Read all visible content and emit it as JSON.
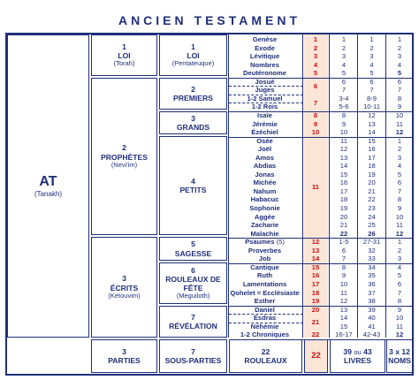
{
  "title": "ANCIEN TESTAMENT",
  "at": {
    "label": "AT",
    "sub": "(Tanakh)"
  },
  "divisions": [
    {
      "num": "1",
      "name": "LOI",
      "sub": "(Torah)"
    },
    {
      "num": "2",
      "name": "PROPHÈTES",
      "sub": "(Nevi'im)"
    },
    {
      "num": "3",
      "name": "ÉCRITS",
      "sub": "(Ketouvim)"
    }
  ],
  "subdivisions": [
    {
      "num": "1",
      "name": "LOI",
      "sub": "(Pentateuque)"
    },
    {
      "num": "2",
      "name": "PREMIERS",
      "sub": ""
    },
    {
      "num": "3",
      "name": "GRANDS",
      "sub": ""
    },
    {
      "num": "4",
      "name": "PETITS",
      "sub": ""
    },
    {
      "num": "5",
      "name": "SAGESSE",
      "sub": ""
    },
    {
      "num": "6",
      "name": "ROULEAUX DE FÊTE",
      "sub": "(Meguiloth)"
    },
    {
      "num": "7",
      "name": "RÉVÉLATION",
      "sub": ""
    }
  ],
  "books": [
    {
      "name": "Genèse",
      "c1": "1",
      "c2": "1",
      "c3": "1"
    },
    {
      "name": "Exode",
      "c1": "2",
      "c2": "2",
      "c3": "2"
    },
    {
      "name": "Lévitique",
      "c1": "3",
      "c2": "3",
      "c3": "3"
    },
    {
      "name": "Nombres",
      "c1": "4",
      "c2": "4",
      "c3": "4"
    },
    {
      "name": "Deutéronome",
      "c1": "5",
      "c2": "5",
      "c3": "5"
    },
    {
      "name": "Josué",
      "c1": "",
      "c2": "6",
      "c3": "6"
    },
    {
      "name": "Juges",
      "c1": "",
      "c2": "7",
      "c3": "7"
    },
    {
      "name": "1-2 Samuel",
      "c1": "",
      "c2": "8-9",
      "c3": "8"
    },
    {
      "name": "1-2 Rois",
      "c1": "",
      "c2": "10-11",
      "c3": "9"
    },
    {
      "name": "Isaïe",
      "c1": "8",
      "c2": "12",
      "c3": "10"
    },
    {
      "name": "Jérémie",
      "c1": "9",
      "c2": "13",
      "c3": "11"
    },
    {
      "name": "Ézéchiel",
      "c1": "10",
      "c2": "14",
      "c3": "12"
    },
    {
      "name": "Osée",
      "c1": "",
      "c2": "15",
      "c3": "13"
    },
    {
      "name": "Joël",
      "c1": "",
      "c2": "16",
      "c3": "14"
    },
    {
      "name": "Amos",
      "c1": "",
      "c2": "17",
      "c3": "15"
    },
    {
      "name": "Abdias",
      "c1": "",
      "c2": "18",
      "c3": "16"
    },
    {
      "name": "Jonas",
      "c1": "",
      "c2": "19",
      "c3": "17"
    },
    {
      "name": "Michée",
      "c1": "",
      "c2": "20",
      "c3": "18"
    },
    {
      "name": "Nahum",
      "c1": "",
      "c2": "21",
      "c3": "19"
    },
    {
      "name": "Habacuc",
      "c1": "",
      "c2": "22",
      "c3": "20"
    },
    {
      "name": "Sophonie",
      "c1": "",
      "c2": "23",
      "c3": "21"
    },
    {
      "name": "Aggée",
      "c1": "",
      "c2": "24",
      "c3": "22"
    },
    {
      "name": "Zacharie",
      "c1": "",
      "c2": "25",
      "c3": "23"
    },
    {
      "name": "Malachie",
      "c1": "",
      "c2": "26",
      "c3": "24"
    },
    {
      "name": "Psaumes",
      "num": "(5)",
      "c1": "12",
      "c2": "27-31",
      "c3": "25"
    },
    {
      "name": "Proverbes",
      "c1": "13",
      "c2": "32",
      "c3": "26"
    },
    {
      "name": "Job",
      "c1": "14",
      "c2": "33",
      "c3": "27"
    },
    {
      "name": "Cantique",
      "c1": "15",
      "c2": "34",
      "c3": "28"
    },
    {
      "name": "Ruth",
      "c1": "16",
      "c2": "35",
      "c3": "29"
    },
    {
      "name": "Lamentations",
      "c1": "17",
      "c2": "36",
      "c3": "30"
    },
    {
      "name": "Qohelet = Ecclésiaste",
      "c1": "18",
      "c2": "37",
      "c3": "31"
    },
    {
      "name": "Esther",
      "c1": "19",
      "c2": "38",
      "c3": "32"
    },
    {
      "name": "Daniel",
      "c1": "20",
      "c2": "39",
      "c3": "33"
    },
    {
      "name": "Esdras",
      "c1": "",
      "c2": "40",
      "c3": "34"
    },
    {
      "name": "Néhémie",
      "c1": "",
      "c2": "41",
      "c3": "35"
    },
    {
      "name": "1-2 Chroniques",
      "c1": "22",
      "c2": "42-43",
      "c3": "36"
    }
  ],
  "col1_vals": {
    "prem6": "6",
    "prem7": "7",
    "petits": "11",
    "ezne": "21"
  },
  "col2_vals": {
    "c34": "3-4",
    "c56": "5-6",
    "c1617": "16-17"
  },
  "col3_vals": {
    "c8": "8",
    "c9": "9",
    "c1": "10",
    "c2": "11",
    "c3": "12",
    "c4": "13",
    "c5": "14",
    "c6": "15",
    "c7": "16",
    "c8b": "17",
    "c9b": "18",
    "c10": "19",
    "c11": "20",
    "c12": "21",
    "c13": "22",
    "c14": "23",
    "c15": "24",
    "c16": "25",
    "c17": "26",
    "c18": "27",
    "c19": "28",
    "c20": "29",
    "c21": "30",
    "c22": "31",
    "c23": "32",
    "c24": "33",
    "c25": "34",
    "c26": "35",
    "c27": "36",
    "c28": "37",
    "c29": "38",
    "c30": "39",
    "c31": "40",
    "c32": "41",
    "c33": "42-43"
  },
  "col4_vals": {
    "r1": "1",
    "r2": "2",
    "r3": "3",
    "r4": "4",
    "r5": "5",
    "r6": "6",
    "r7": "7",
    "r8": "8",
    "r9": "9",
    "r10": "10",
    "r11": "11",
    "r12": "12",
    "r13": "1",
    "r14": "2",
    "r15": "3",
    "r16": "4",
    "r17": "5",
    "r18": "6",
    "r19": "7",
    "r20": "8",
    "r21": "9",
    "r22": "10",
    "r23": "11",
    "r24": "12",
    "r25": "1",
    "r26": "2",
    "r27": "3",
    "r28": "4",
    "r29": "5",
    "r30": "6",
    "r31": "7",
    "r32": "8",
    "r33": "9",
    "r34": "10",
    "r35": "11",
    "r36": "12"
  },
  "bottom": {
    "parties_num": "3",
    "parties_label": "PARTIES",
    "sous_num": "7",
    "sous_label": "SOUS-PARTIES",
    "rouleaux_num": "22",
    "rouleaux_label": "ROULEAUX",
    "red_num": "22",
    "livres_num": "39",
    "livres_ou": "ou",
    "livres_num2": "43",
    "livres_label": "LIVRES",
    "noms_num": "3 x 12",
    "noms_label": "NOMS"
  }
}
